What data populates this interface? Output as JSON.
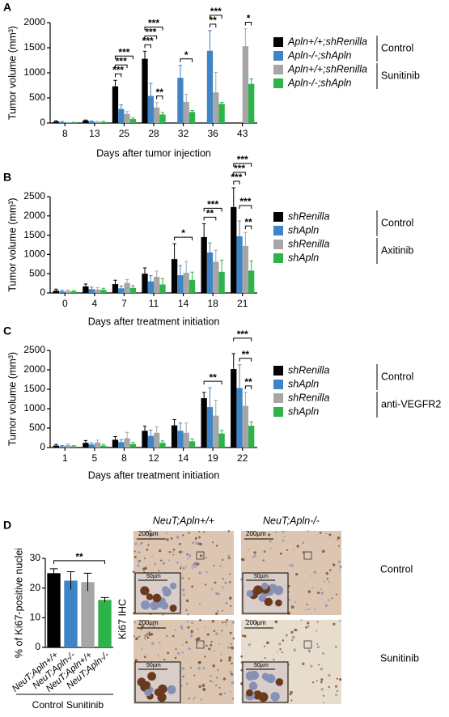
{
  "chart_data": [
    {
      "type": "bar",
      "panel": "A",
      "ylabel": "Tumor volume (mm³)",
      "xlabel": "Days after tumor injection",
      "categories": [
        "8",
        "13",
        "25",
        "28",
        "32",
        "36",
        "43"
      ],
      "ylim": [
        0,
        2000
      ],
      "yticks": [
        0,
        500,
        1000,
        1500,
        2000
      ],
      "series": [
        {
          "name": "Apln+/+;shRenilla",
          "color": "#000000",
          "values": [
            30,
            50,
            730,
            1280,
            null,
            null,
            null
          ],
          "errors": [
            15,
            10,
            120,
            150,
            null,
            null,
            null
          ]
        },
        {
          "name": "Apln-/-;shApln",
          "color": "#3f84c6",
          "values": [
            20,
            30,
            280,
            540,
            900,
            1440,
            null
          ],
          "errors": [
            10,
            10,
            80,
            250,
            250,
            400,
            null
          ]
        },
        {
          "name": "Apln+/+;shRenilla",
          "color": "#a6a6a6",
          "values": [
            10,
            20,
            180,
            310,
            420,
            610,
            1530
          ],
          "errors": [
            5,
            10,
            50,
            100,
            150,
            400,
            350
          ]
        },
        {
          "name": "Apln-/-;shApln",
          "color": "#2db34a",
          "values": [
            10,
            20,
            80,
            170,
            220,
            380,
            780
          ],
          "errors": [
            5,
            10,
            20,
            40,
            30,
            30,
            100
          ]
        }
      ],
      "legend_groups": [
        "Control",
        "Sunitinib"
      ],
      "annotations": [
        "***",
        "***",
        "***",
        "***",
        "***",
        "***",
        "**",
        "*",
        "***",
        "**",
        "*"
      ]
    },
    {
      "type": "bar",
      "panel": "B",
      "ylabel": "Tumor volume (mm³)",
      "xlabel": "Days after treatment initiation",
      "categories": [
        "0",
        "4",
        "7",
        "11",
        "14",
        "18",
        "21"
      ],
      "ylim": [
        0,
        2500
      ],
      "yticks": [
        0,
        500,
        1000,
        1500,
        2000,
        2500
      ],
      "series": [
        {
          "name": "shRenilla",
          "color": "#000000",
          "values": [
            60,
            170,
            230,
            500,
            880,
            1450,
            2230
          ],
          "errors": [
            40,
            60,
            100,
            150,
            400,
            350,
            500
          ]
        },
        {
          "name": "shApln",
          "color": "#3f84c6",
          "values": [
            40,
            100,
            120,
            300,
            460,
            1050,
            1470
          ],
          "errors": [
            30,
            50,
            60,
            150,
            250,
            250,
            400
          ]
        },
        {
          "name": "shRenilla",
          "color": "#a6a6a6",
          "values": [
            50,
            90,
            260,
            420,
            520,
            810,
            1220
          ],
          "errors": [
            30,
            50,
            90,
            150,
            300,
            300,
            350
          ]
        },
        {
          "name": "shApln",
          "color": "#2db34a",
          "values": [
            40,
            80,
            130,
            220,
            340,
            550,
            580
          ],
          "errors": [
            20,
            40,
            60,
            150,
            200,
            300,
            250
          ]
        }
      ],
      "legend_groups": [
        "Control",
        "Axitinib"
      ],
      "annotations": [
        "*",
        "***",
        "**",
        "***",
        "***",
        "***",
        "***",
        "**"
      ]
    },
    {
      "type": "bar",
      "panel": "C",
      "ylabel": "Tumor volume (mm³)",
      "xlabel": "Days after treatment initiation",
      "categories": [
        "1",
        "5",
        "8",
        "12",
        "14",
        "19",
        "22"
      ],
      "ylim": [
        0,
        2500
      ],
      "yticks": [
        0,
        500,
        1000,
        1500,
        2000,
        2500
      ],
      "series": [
        {
          "name": "shRenilla",
          "color": "#000000",
          "values": [
            50,
            120,
            200,
            430,
            570,
            1270,
            2020
          ],
          "errors": [
            30,
            60,
            80,
            120,
            150,
            150,
            400
          ]
        },
        {
          "name": "shApln",
          "color": "#3f84c6",
          "values": [
            30,
            80,
            140,
            300,
            430,
            1040,
            1530
          ],
          "errors": [
            20,
            40,
            60,
            150,
            200,
            500,
            600
          ]
        },
        {
          "name": "shRenilla",
          "color": "#a6a6a6",
          "values": [
            60,
            130,
            240,
            380,
            380,
            820,
            1070
          ],
          "errors": [
            30,
            60,
            150,
            150,
            250,
            400,
            350
          ]
        },
        {
          "name": "shApln",
          "color": "#2db34a",
          "values": [
            30,
            50,
            90,
            120,
            160,
            360,
            560
          ],
          "errors": [
            20,
            30,
            40,
            50,
            60,
            80,
            100
          ]
        }
      ],
      "legend_groups": [
        "Control",
        "anti-VEGFR2"
      ],
      "annotations": [
        "**",
        "***",
        "**",
        "**"
      ]
    },
    {
      "type": "bar",
      "panel": "D",
      "ylabel": "% of Ki67-positive nuclei",
      "categories": [
        "NeuT;Apln+/+",
        "NeuT;Apln-/-",
        "NeuT;Apln+/+",
        "NeuT;Apln-/-"
      ],
      "values": [
        25,
        22.5,
        22,
        16
      ],
      "errors": [
        1.5,
        3,
        3,
        0.8
      ],
      "colors": [
        "#000000",
        "#3f84c6",
        "#a6a6a6",
        "#2db34a"
      ],
      "ylim": [
        0,
        30
      ],
      "yticks": [
        0,
        10,
        20,
        30
      ],
      "x_groups": [
        "Control",
        "Sunitinib"
      ],
      "annotations": [
        "**"
      ]
    }
  ],
  "ihc": {
    "side_label": "Ki67 IHC",
    "columns": [
      "NeuT;Apln+/+",
      "NeuT;Apln-/-"
    ],
    "rows": [
      "Control",
      "Sunitinib"
    ],
    "scale_bar": "200µm",
    "inset_scale_bar": "50µm"
  }
}
